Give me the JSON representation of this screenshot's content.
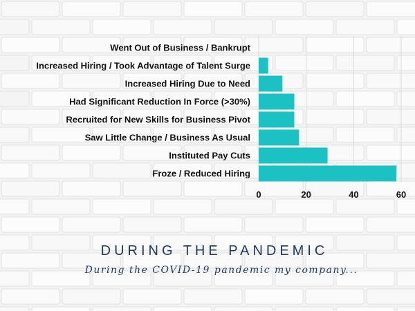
{
  "chart_data": {
    "type": "bar",
    "orientation": "horizontal",
    "categories": [
      "Went Out of Business / Bankrupt",
      "Increased Hiring / Took Advantage of Talent Surge",
      "Increased Hiring Due to Need",
      "Had Significant Reduction In Force (>30%)",
      "Recruited for New Skills for Business Pivot",
      "Saw Little Change / Business As Usual",
      "Instituted Pay Cuts",
      "Froze / Reduced Hiring"
    ],
    "values": [
      0,
      4,
      10,
      15,
      15,
      17,
      29,
      58
    ],
    "xlim": [
      0,
      60
    ],
    "xticks": [
      "0",
      "20",
      "40",
      "60"
    ],
    "xgrid": true,
    "bar_color": "#1cc1c4"
  },
  "footer": {
    "title": "DURING THE PANDEMIC",
    "subtitle": "During the COVID-19 pandemic my company..."
  },
  "colors": {
    "background": "#f3f3f3",
    "accent": "#1d3a5c"
  }
}
